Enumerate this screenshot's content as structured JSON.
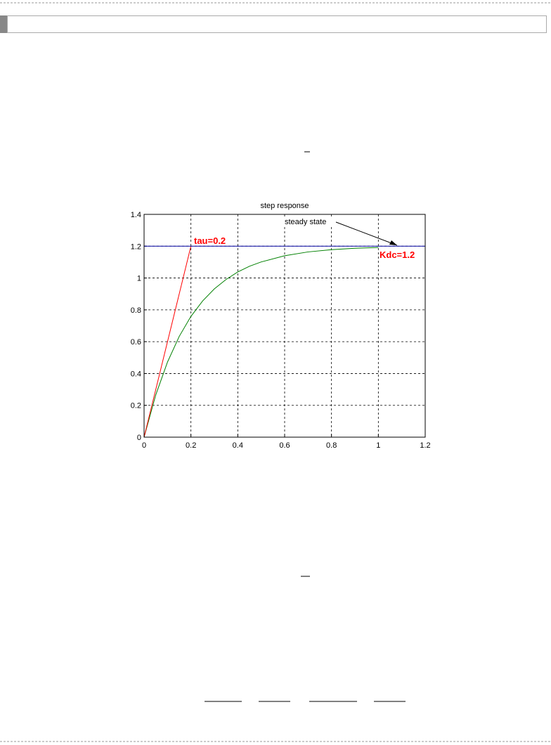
{
  "chart_data": {
    "type": "line",
    "title": "step response",
    "series": [
      {
        "color": "#008000",
        "x": [
          0,
          0.05,
          0.1,
          0.15,
          0.2,
          0.25,
          0.3,
          0.35,
          0.4,
          0.45,
          0.5,
          0.6,
          0.7,
          0.8,
          0.9,
          1.0
        ],
        "values": [
          0,
          0.266,
          0.472,
          0.633,
          0.759,
          0.856,
          0.932,
          0.991,
          1.038,
          1.074,
          1.101,
          1.14,
          1.164,
          1.178,
          1.187,
          1.192
        ]
      },
      {
        "color": "#ff0000",
        "x": [
          0,
          0.2
        ],
        "values": [
          0,
          1.2
        ]
      },
      {
        "color": "#0000a0",
        "x": [
          0,
          1.2
        ],
        "values": [
          1.2,
          1.2
        ]
      }
    ],
    "annotations": [
      "tau=0.2",
      "steady state",
      "Kdc=1.2"
    ],
    "xlim": [
      0,
      1.2
    ],
    "ylim": [
      0,
      1.4
    ],
    "xticks": [
      0,
      0.2,
      0.4,
      0.6,
      0.8,
      1,
      1.2
    ],
    "yticks": [
      0,
      0.2,
      0.4,
      0.6,
      0.8,
      1,
      1.2,
      1.4
    ],
    "grid": true
  }
}
